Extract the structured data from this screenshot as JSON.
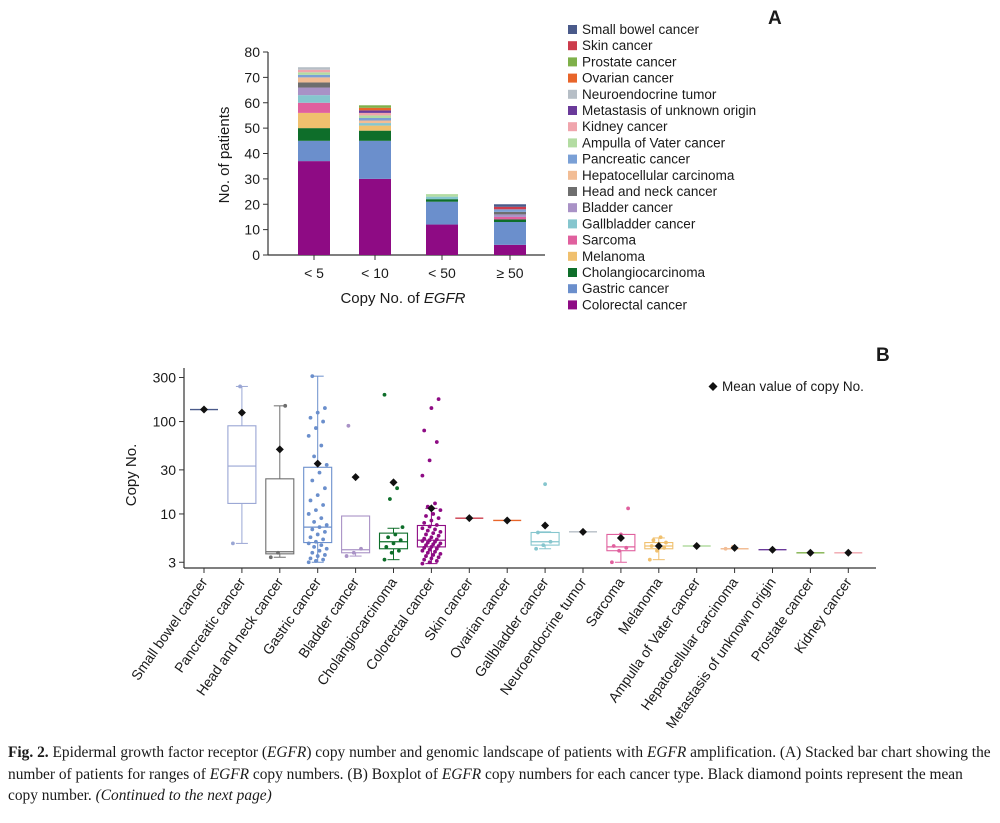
{
  "chart_data": [
    {
      "type": "bar",
      "stacked": true,
      "panel_label": "A",
      "categories": [
        "< 5",
        "< 10",
        "< 50",
        "≥ 50"
      ],
      "xlabel_prefix": "Copy No. of ",
      "xlabel_gene": "EGFR",
      "ylabel": "No. of patients",
      "ylim": [
        0,
        80
      ],
      "yticks": [
        0,
        10,
        20,
        30,
        40,
        50,
        60,
        70,
        80
      ],
      "legend_position": "right",
      "series": [
        {
          "name": "Colorectal cancer",
          "color": "#8e0b84",
          "values": [
            37,
            30,
            12,
            4
          ]
        },
        {
          "name": "Gastric cancer",
          "color": "#6b8fcc",
          "values": [
            8,
            15,
            9,
            9
          ]
        },
        {
          "name": "Cholangiocarcinoma",
          "color": "#0e6e2a",
          "values": [
            5,
            4,
            1,
            1
          ]
        },
        {
          "name": "Melanoma",
          "color": "#f0c06e",
          "values": [
            6,
            2,
            0,
            0
          ]
        },
        {
          "name": "Sarcoma",
          "color": "#e0609e",
          "values": [
            4,
            0,
            0,
            1
          ]
        },
        {
          "name": "Gallbladder cancer",
          "color": "#86c6ce",
          "values": [
            3,
            1,
            1,
            0
          ]
        },
        {
          "name": "Bladder cancer",
          "color": "#a992c6",
          "values": [
            3,
            0,
            0,
            1
          ]
        },
        {
          "name": "Head and neck cancer",
          "color": "#6e6e6e",
          "values": [
            2,
            0,
            0,
            1
          ]
        },
        {
          "name": "Hepatocellular carcinoma",
          "color": "#f2bd95",
          "values": [
            2,
            1,
            0,
            0
          ]
        },
        {
          "name": "Pancreatic cancer",
          "color": "#7aa0d6",
          "values": [
            1,
            1,
            0,
            1
          ]
        },
        {
          "name": "Ampulla of Vater cancer",
          "color": "#b3dca2",
          "values": [
            1,
            1,
            1,
            0
          ]
        },
        {
          "name": "Kidney cancer",
          "color": "#f0a5ad",
          "values": [
            1,
            1,
            0,
            0
          ]
        },
        {
          "name": "Metastasis of unknown origin",
          "color": "#6a3a9a",
          "values": [
            0,
            1,
            0,
            0
          ]
        },
        {
          "name": "Neuroendocrine tumor",
          "color": "#b6bec6",
          "values": [
            1,
            0,
            0,
            0
          ]
        },
        {
          "name": "Ovarian cancer",
          "color": "#e8652a",
          "values": [
            0,
            1,
            0,
            0
          ]
        },
        {
          "name": "Prostate cancer",
          "color": "#7fb04a",
          "values": [
            0,
            1,
            0,
            0
          ]
        },
        {
          "name": "Skin cancer",
          "color": "#cc3c4c",
          "values": [
            0,
            0,
            0,
            1
          ]
        },
        {
          "name": "Small bowel cancer",
          "color": "#4a5a8a",
          "values": [
            0,
            0,
            0,
            1
          ]
        }
      ],
      "legend_order": [
        "Small bowel cancer",
        "Skin cancer",
        "Prostate cancer",
        "Ovarian cancer",
        "Neuroendocrine tumor",
        "Metastasis of unknown origin",
        "Kidney cancer",
        "Ampulla of Vater cancer",
        "Pancreatic cancer",
        "Hepatocellular carcinoma",
        "Head and neck cancer",
        "Bladder cancer",
        "Gallbladder cancer",
        "Sarcoma",
        "Melanoma",
        "Cholangiocarcinoma",
        "Gastric cancer",
        "Colorectal cancer"
      ]
    },
    {
      "type": "box",
      "panel_label": "B",
      "ylabel": "Copy No.",
      "yscale": "log",
      "ylim": [
        2.6,
        380
      ],
      "yticks": [
        3,
        10,
        30,
        100,
        300
      ],
      "legend_label": "Mean value of copy No.",
      "legend_position": "top-right",
      "groups": [
        {
          "name": "Small bowel cancer",
          "color": "#4a5a8a",
          "points": [
            135
          ],
          "mean": 135
        },
        {
          "name": "Pancreatic cancer",
          "color": "#9aa6d4",
          "q1": 13,
          "median": 33,
          "q3": 90,
          "whisker_low": 4.8,
          "whisker_high": 240,
          "points": [
            4.8,
            240
          ],
          "mean": 125
        },
        {
          "name": "Head and neck cancer",
          "color": "#6e6e6e",
          "q1": 3.7,
          "median": 3.9,
          "q3": 24,
          "whisker_low": 3.4,
          "whisker_high": 148,
          "points": [
            3.4,
            3.8,
            148
          ],
          "mean": 50
        },
        {
          "name": "Gastric cancer",
          "color": "#6b8fcc",
          "q1": 4.9,
          "median": 7.2,
          "q3": 32,
          "whisker_low": 3.0,
          "whisker_high": 310,
          "points": [
            3.0,
            3.1,
            3.2,
            3.3,
            3.5,
            3.6,
            3.8,
            4.0,
            4.2,
            4.4,
            4.6,
            4.8,
            5.0,
            5.3,
            5.6,
            6.0,
            6.4,
            6.8,
            7.2,
            7.6,
            8.2,
            9.0,
            10,
            11,
            12.5,
            14,
            16,
            19,
            23,
            28,
            34,
            42,
            55,
            70,
            85,
            100,
            110,
            125,
            140,
            310
          ],
          "mean": 35
        },
        {
          "name": "Bladder cancer",
          "color": "#a992c6",
          "q1": 3.8,
          "median": 4.1,
          "q3": 9.5,
          "whisker_low": 3.5,
          "whisker_high": 9.5,
          "points": [
            3.5,
            3.8,
            4.2,
            90
          ],
          "mean": 25
        },
        {
          "name": "Cholangiocarcinoma",
          "color": "#0e6e2a",
          "q1": 4.2,
          "median": 5.0,
          "q3": 6.2,
          "whisker_low": 3.2,
          "whisker_high": 7.0,
          "points": [
            3.2,
            3.8,
            4.0,
            4.4,
            4.8,
            5.2,
            5.6,
            6.0,
            7.2,
            14.5,
            19,
            195
          ],
          "mean": 22
        },
        {
          "name": "Colorectal cancer",
          "color": "#8e0b84",
          "q1": 4.4,
          "median": 5.2,
          "q3": 7.5,
          "whisker_low": 2.9,
          "whisker_high": 11.5,
          "points": [
            2.9,
            3.0,
            3.1,
            3.2,
            3.3,
            3.4,
            3.5,
            3.6,
            3.7,
            3.8,
            3.9,
            4.0,
            4.1,
            4.2,
            4.3,
            4.4,
            4.5,
            4.6,
            4.7,
            4.8,
            4.9,
            5.0,
            5.1,
            5.2,
            5.3,
            5.4,
            5.6,
            5.8,
            6.0,
            6.2,
            6.4,
            6.6,
            6.8,
            7.0,
            7.3,
            7.6,
            8.0,
            8.5,
            9.0,
            9.5,
            10,
            11,
            12,
            13,
            26,
            38,
            60,
            80,
            140,
            175
          ],
          "mean": 11.5
        },
        {
          "name": "Skin cancer",
          "color": "#cc3c4c",
          "points": [
            9
          ],
          "mean": 9
        },
        {
          "name": "Ovarian cancer",
          "color": "#e8652a",
          "points": [
            8.5
          ],
          "mean": 8.5
        },
        {
          "name": "Gallbladder cancer",
          "color": "#86c6ce",
          "q1": 4.6,
          "median": 5.0,
          "q3": 6.3,
          "whisker_low": 4.2,
          "whisker_high": 6.4,
          "points": [
            4.2,
            4.6,
            5.0,
            6.3,
            21
          ],
          "mean": 7.5
        },
        {
          "name": "Neuroendocrine tumor",
          "color": "#b6bec6",
          "points": [
            6.4
          ],
          "mean": 6.4
        },
        {
          "name": "Sarcoma",
          "color": "#e0609e",
          "q1": 4.0,
          "median": 4.4,
          "q3": 6.0,
          "whisker_low": 3.0,
          "whisker_high": 6.0,
          "points": [
            3.0,
            4.0,
            4.3,
            4.5,
            6.0,
            11.5
          ],
          "mean": 5.5
        },
        {
          "name": "Melanoma",
          "color": "#f0c06e",
          "q1": 4.2,
          "median": 4.5,
          "q3": 4.9,
          "whisker_low": 3.2,
          "whisker_high": 5.5,
          "points": [
            3.2,
            4.0,
            4.3,
            4.5,
            4.7,
            4.9,
            5.2,
            5.6
          ],
          "mean": 4.5
        },
        {
          "name": "Ampulla of Vater cancer",
          "color": "#b3dca2",
          "points": [
            4.5
          ],
          "mean": 4.5
        },
        {
          "name": "Hepatocellular carcinoma",
          "color": "#f2bd95",
          "points": [
            4.2,
            4.4
          ],
          "mean": 4.3
        },
        {
          "name": "Metastasis of unknown origin",
          "color": "#6a3a9a",
          "points": [
            4.1
          ],
          "mean": 4.1
        },
        {
          "name": "Prostate cancer",
          "color": "#7fb04a",
          "points": [
            3.8
          ],
          "mean": 3.8
        },
        {
          "name": "Kidney cancer",
          "color": "#f0a5ad",
          "points": [
            3.8
          ],
          "mean": 3.8
        }
      ]
    }
  ],
  "caption": {
    "fig_label": "Fig. 2.",
    "text_1": " Epidermal growth factor receptor (",
    "gene_1": "EGFR",
    "text_2": ") copy number and genomic landscape of patients with ",
    "gene_2": "EGFR",
    "text_3": " amplification. (A) Stacked bar chart showing the number of patients for ranges of ",
    "gene_3": "EGFR",
    "text_4": " copy numbers. (B) Boxplot of ",
    "gene_4": "EGFR",
    "text_5": " copy numbers for each cancer type. Black diamond points represent the mean copy number.  ",
    "continued": "(Continued to the next page)"
  }
}
